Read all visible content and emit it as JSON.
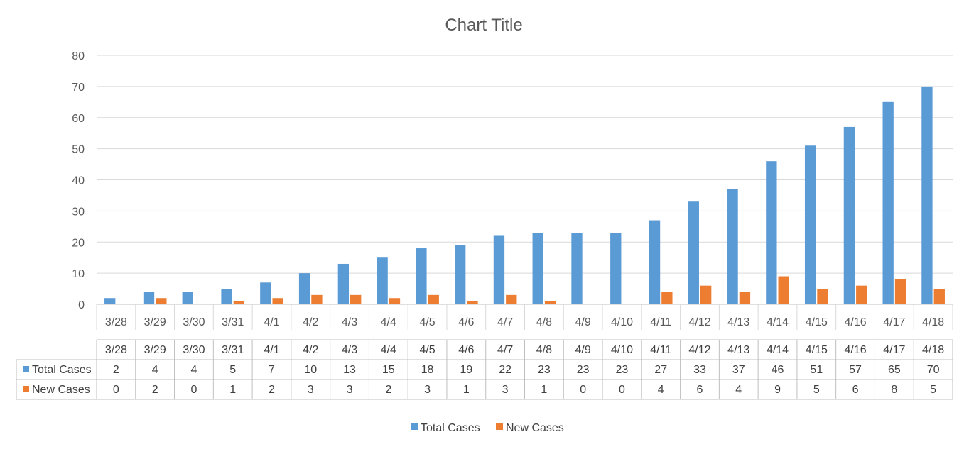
{
  "chart_data": {
    "type": "bar",
    "title": "Chart Title",
    "categories": [
      "3/28",
      "3/29",
      "3/30",
      "3/31",
      "4/1",
      "4/2",
      "4/3",
      "4/4",
      "4/5",
      "4/6",
      "4/7",
      "4/8",
      "4/9",
      "4/10",
      "4/11",
      "4/12",
      "4/13",
      "4/14",
      "4/15",
      "4/16",
      "4/17",
      "4/18"
    ],
    "series": [
      {
        "name": "Total Cases",
        "color": "#5B9BD5",
        "values": [
          2,
          4,
          4,
          5,
          7,
          10,
          13,
          15,
          18,
          19,
          22,
          23,
          23,
          23,
          27,
          33,
          37,
          46,
          51,
          57,
          65,
          70
        ]
      },
      {
        "name": "New Cases",
        "color": "#ED7D31",
        "values": [
          0,
          2,
          0,
          1,
          2,
          3,
          3,
          2,
          3,
          1,
          3,
          1,
          0,
          0,
          4,
          6,
          4,
          9,
          5,
          6,
          8,
          5
        ]
      }
    ],
    "ylim": [
      0,
      80
    ],
    "yticks": [
      0,
      10,
      20,
      30,
      40,
      50,
      60,
      70,
      80
    ],
    "grid": true,
    "data_table": true,
    "legend": "bottom"
  }
}
